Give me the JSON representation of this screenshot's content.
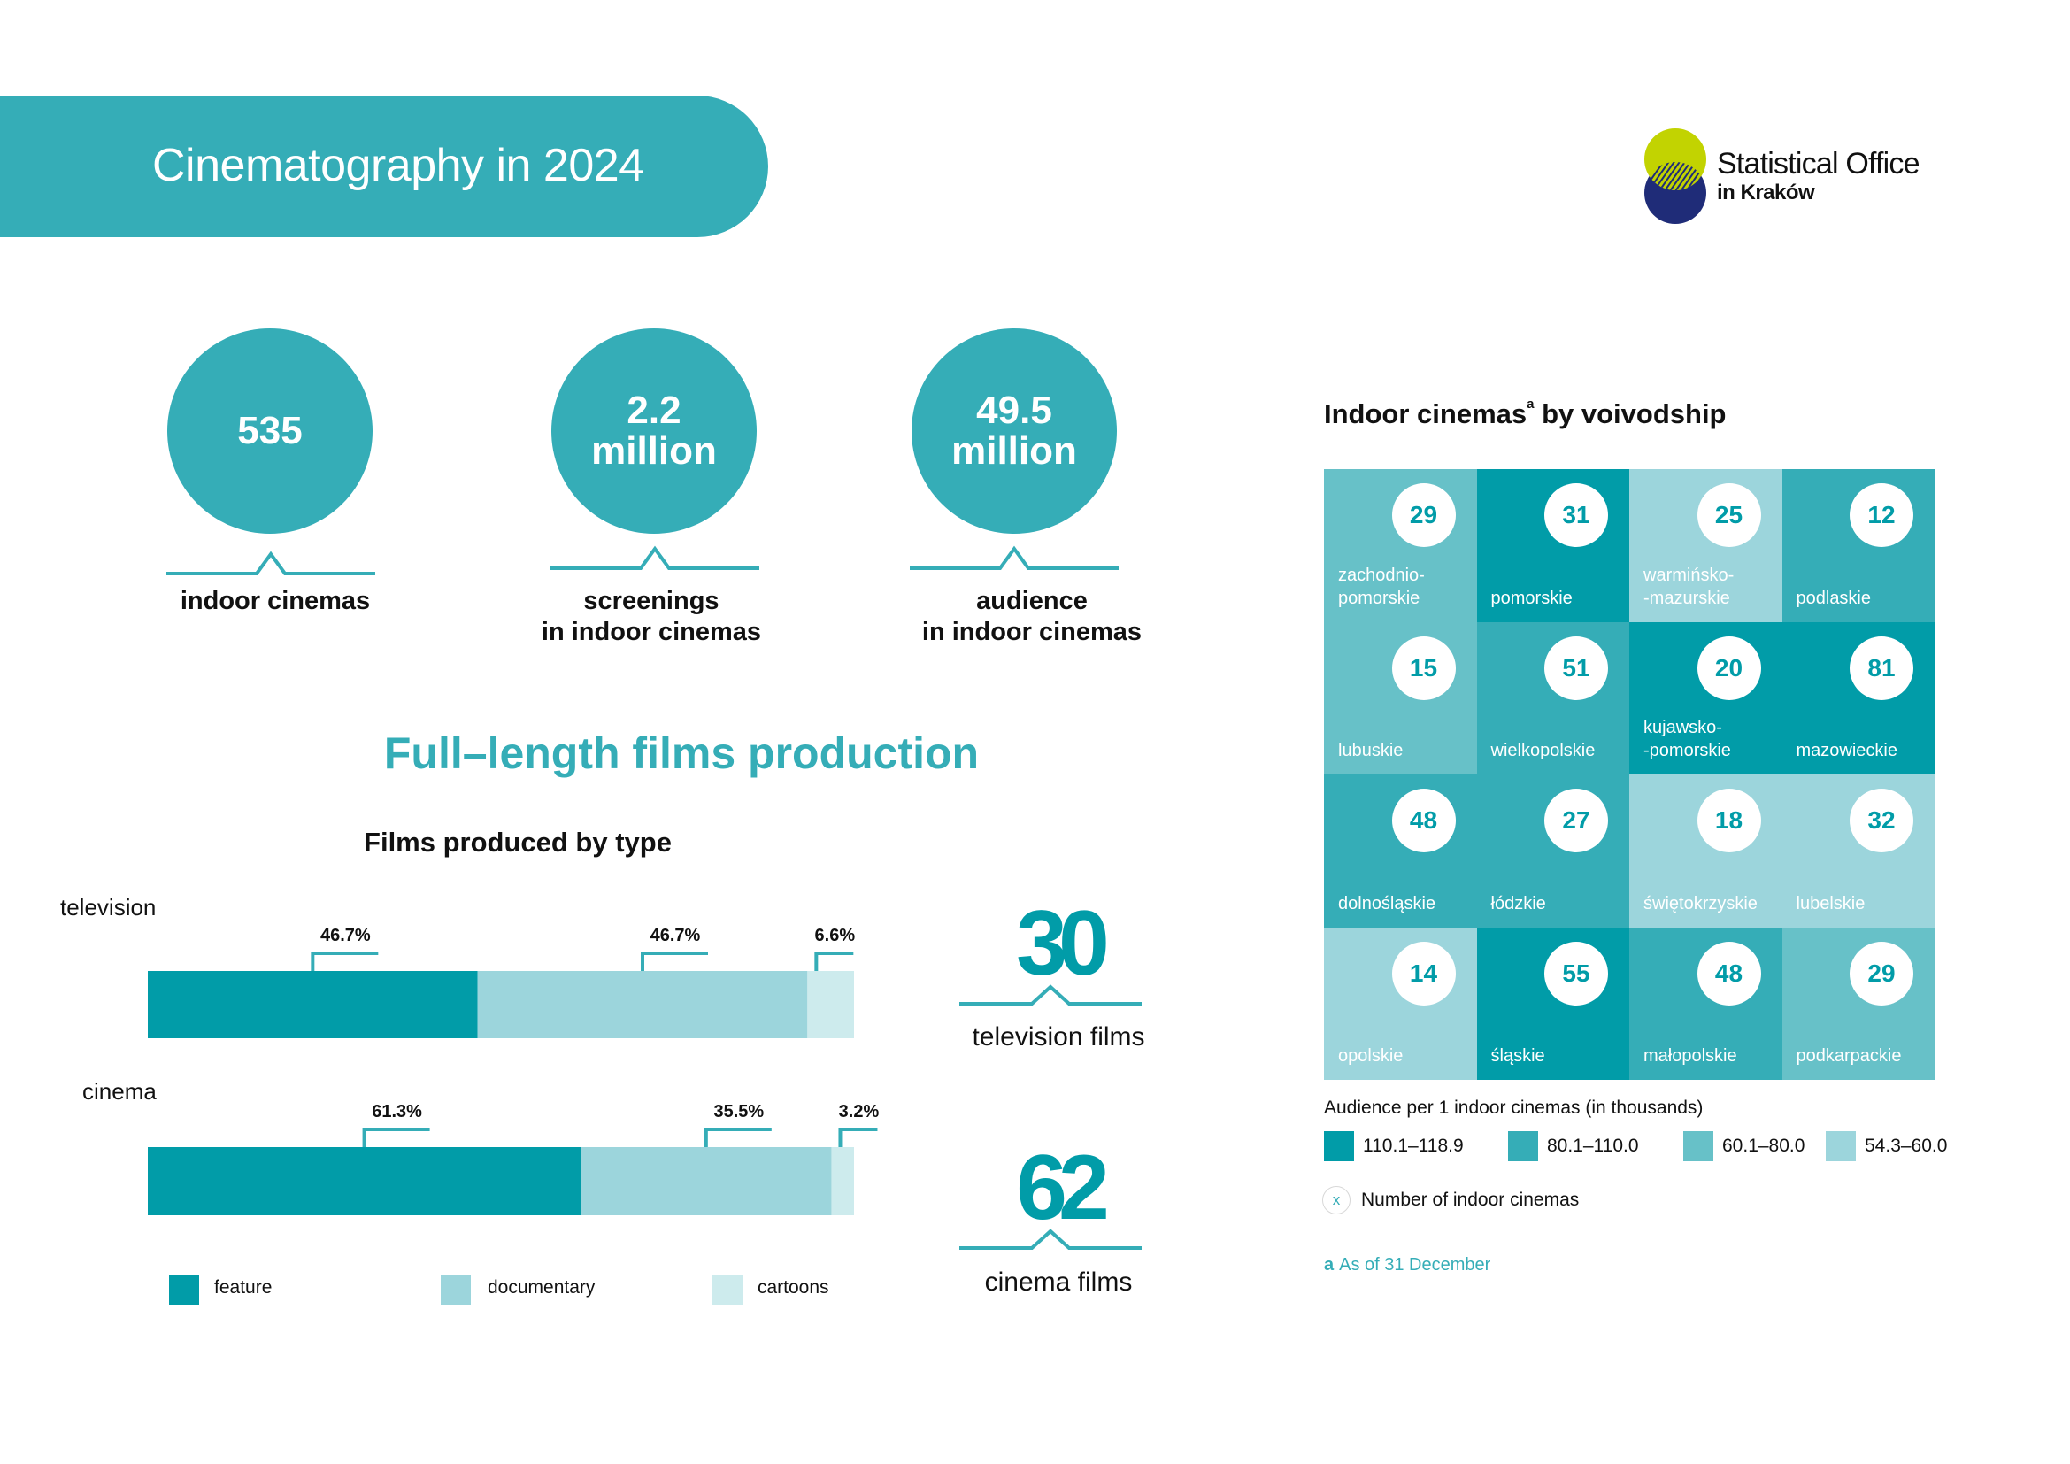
{
  "header": {
    "title": "Cinematography in 2024"
  },
  "logo": {
    "line1": "Statistical Office",
    "line2": "in Kraków",
    "colors": {
      "top_circle": "#c2d301",
      "bottom_circle": "#1f2c78"
    }
  },
  "kpis": [
    {
      "value_line1": "535",
      "value_line2": "",
      "label_line1": "indoor cinemas",
      "label_line2": ""
    },
    {
      "value_line1": "2.2",
      "value_line2": "million",
      "label_line1": "screenings",
      "label_line2": "in indoor cinemas"
    },
    {
      "value_line1": "49.5",
      "value_line2": "million",
      "label_line1": "audience",
      "label_line2": "in indoor cinemas"
    }
  ],
  "production": {
    "section_title": "Full–length films production",
    "totals": [
      {
        "value": "30",
        "label": "television films"
      },
      {
        "value": "62",
        "label": "cinema films"
      }
    ]
  },
  "colors": {
    "accent": "#35adb7",
    "feature": "#019ca8",
    "documentary": "#9cd5dc",
    "cartoons": "#cdebed",
    "class1": "#019ca8",
    "class2": "#35adb7",
    "class3": "#67c1c8",
    "class4": "#9cd5dc"
  },
  "chart_data": [
    {
      "type": "bar",
      "orientation": "horizontal-stacked-100",
      "title": "Films produced by type",
      "categories": [
        "television",
        "cinema"
      ],
      "series": [
        {
          "name": "feature",
          "values": [
            46.7,
            61.3
          ]
        },
        {
          "name": "documentary",
          "values": [
            46.7,
            35.5
          ]
        },
        {
          "name": "cartoons",
          "values": [
            6.6,
            3.2
          ]
        }
      ],
      "data_labels": [
        [
          "46.7%",
          "46.7%",
          "6.6%"
        ],
        [
          "61.3%",
          "35.5%",
          "3.2%"
        ]
      ],
      "unit": "%",
      "xlim": [
        0,
        100
      ],
      "legend": {
        "position": "bottom",
        "entries": [
          "feature",
          "documentary",
          "cartoons"
        ]
      }
    },
    {
      "type": "heatmap",
      "title": "Indoor cinemas",
      "title_superscript": "a",
      "title_suffix": "by voivodship",
      "grid": [
        [
          {
            "name": "zachodnio-\npomorskie",
            "cinemas": 29,
            "class": 3
          },
          {
            "name": "pomorskie",
            "cinemas": 31,
            "class": 1
          },
          {
            "name": "warmińsko-\n-mazurskie",
            "cinemas": 25,
            "class": 4
          },
          {
            "name": "podlaskie",
            "cinemas": 12,
            "class": 2
          }
        ],
        [
          {
            "name": "lubuskie",
            "cinemas": 15,
            "class": 3
          },
          {
            "name": "wielkopolskie",
            "cinemas": 51,
            "class": 2
          },
          {
            "name": "kujawsko-\n-pomorskie",
            "cinemas": 20,
            "class": 1
          },
          {
            "name": "mazowieckie",
            "cinemas": 81,
            "class": 1
          }
        ],
        [
          {
            "name": "dolnośląskie",
            "cinemas": 48,
            "class": 2
          },
          {
            "name": "łódzkie",
            "cinemas": 27,
            "class": 2
          },
          {
            "name": "świętokrzyskie",
            "cinemas": 18,
            "class": 4
          },
          {
            "name": "lubelskie",
            "cinemas": 32,
            "class": 4
          }
        ],
        [
          {
            "name": "opolskie",
            "cinemas": 14,
            "class": 4
          },
          {
            "name": "śląskie",
            "cinemas": 55,
            "class": 1
          },
          {
            "name": "małopolskie",
            "cinemas": 48,
            "class": 2
          },
          {
            "name": "podkarpackie",
            "cinemas": 29,
            "class": 3
          }
        ]
      ],
      "legend_title": "Audience per 1 indoor cinemas (in thousands)",
      "legend_classes": [
        {
          "class": 1,
          "range": "110.1–118.9"
        },
        {
          "class": 2,
          "range": "80.1–110.0"
        },
        {
          "class": 3,
          "range": "60.1–80.0"
        },
        {
          "class": 4,
          "range": "54.3–60.0"
        }
      ],
      "badge_legend": {
        "symbol": "x",
        "label": "Number of indoor cinemas"
      },
      "footnote": {
        "mark": "a",
        "text": "As of 31 December"
      }
    }
  ]
}
